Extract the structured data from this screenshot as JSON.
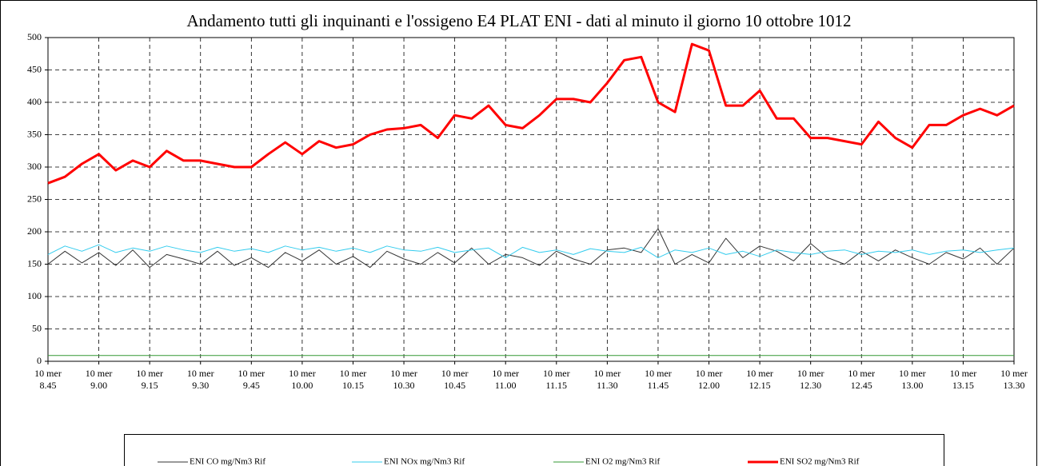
{
  "chart_data": {
    "type": "line",
    "title": "Andamento tutti gli inquinanti e l'ossigeno E4 PLAT ENI - dati al minuto il giorno 10 ottobre 1012",
    "categories": [
      "10 mer 8.45",
      null,
      null,
      "10 mer 9.00",
      null,
      null,
      "10 mer 9.15",
      null,
      null,
      "10 mer 9.30",
      null,
      null,
      "10 mer 9.45",
      null,
      null,
      "10 mer 10.00",
      null,
      null,
      "10 mer 10.15",
      null,
      null,
      "10 mer 10.30",
      null,
      null,
      "10 mer 10.45",
      null,
      null,
      "10 mer 11.00",
      null,
      null,
      "10 mer 11.15",
      null,
      null,
      "10 mer 11.30",
      null,
      null,
      "10 mer 11.45",
      null,
      null,
      "10 mer 12.00",
      null,
      null,
      "10 mer 12.15",
      null,
      null,
      "10 mer 12.30",
      null,
      null,
      "10 mer 12.45",
      null,
      null,
      "10 mer 13.00",
      null,
      null,
      "10 mer 13.15",
      null,
      null,
      "10 mer 13.30"
    ],
    "series": [
      {
        "name": "ENI CO mg/Nm3 Rif",
        "color": "#333333",
        "width": 1,
        "values": [
          150,
          170,
          152,
          168,
          148,
          172,
          145,
          165,
          158,
          150,
          170,
          148,
          160,
          145,
          168,
          155,
          172,
          150,
          162,
          145,
          170,
          158,
          150,
          168,
          152,
          175,
          150,
          165,
          160,
          148,
          170,
          158,
          150,
          172,
          175,
          168,
          205,
          150,
          165,
          152,
          190,
          160,
          178,
          170,
          155,
          182,
          160,
          150,
          170,
          155,
          172,
          160,
          150,
          168,
          158,
          175,
          150,
          175
        ]
      },
      {
        "name": "ENI NOx mg/Nm3 Rif",
        "color": "#33ccee",
        "width": 1,
        "values": [
          165,
          178,
          170,
          180,
          168,
          175,
          170,
          178,
          172,
          168,
          176,
          170,
          174,
          168,
          178,
          172,
          176,
          170,
          175,
          168,
          178,
          172,
          170,
          176,
          168,
          172,
          175,
          160,
          176,
          168,
          172,
          165,
          174,
          170,
          168,
          176,
          160,
          172,
          168,
          175,
          165,
          170,
          162,
          172,
          168,
          165,
          170,
          172,
          165,
          170,
          168,
          172,
          165,
          170,
          172,
          168,
          172,
          175
        ]
      },
      {
        "name": "ENI O2 mg/Nm3 Rif",
        "color": "#339933",
        "width": 1,
        "values": [
          9,
          9,
          9,
          9,
          9,
          9,
          9,
          9,
          9,
          9,
          9,
          9,
          9,
          9,
          9,
          9,
          9,
          9,
          9,
          9,
          9,
          9,
          9,
          9,
          9,
          9,
          9,
          9,
          9,
          9,
          9,
          9,
          9,
          9,
          9,
          9,
          9,
          9,
          9,
          9,
          9,
          9,
          9,
          9,
          9,
          9,
          9,
          9,
          9,
          9,
          9,
          9,
          9,
          9,
          9,
          9,
          9,
          9
        ]
      },
      {
        "name": "ENI SO2 mg/Nm3 Rif",
        "color": "#ff0000",
        "width": 3,
        "values": [
          275,
          285,
          305,
          320,
          295,
          310,
          300,
          325,
          310,
          310,
          305,
          300,
          300,
          320,
          338,
          320,
          340,
          330,
          335,
          350,
          358,
          360,
          365,
          345,
          380,
          375,
          395,
          365,
          360,
          380,
          405,
          405,
          400,
          430,
          465,
          470,
          400,
          385,
          490,
          480,
          395,
          395,
          418,
          375,
          375,
          345,
          345,
          340,
          335,
          370,
          345,
          330,
          365,
          365,
          380,
          390,
          380,
          395
        ]
      }
    ],
    "ylim": [
      0,
      500
    ],
    "yticks": [
      0,
      50,
      100,
      150,
      200,
      250,
      300,
      350,
      400,
      450,
      500
    ],
    "grid": true
  }
}
